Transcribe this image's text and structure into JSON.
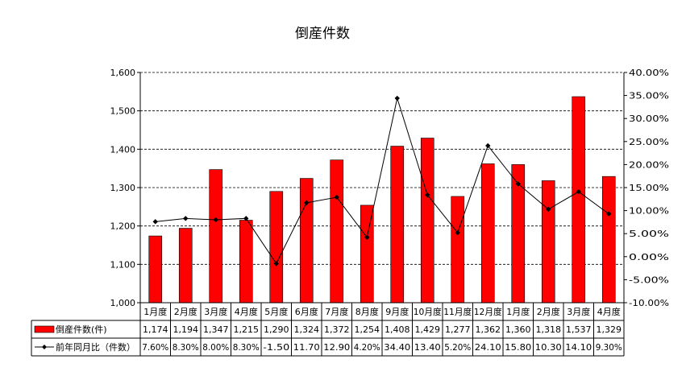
{
  "chart_data": {
    "type": "bar",
    "title": "倒産件数",
    "categories": [
      "1月度",
      "2月度",
      "3月度",
      "4月度",
      "5月度",
      "6月度",
      "7月度",
      "8月度",
      "9月度",
      "10月度",
      "11月度",
      "12月度",
      "1月度",
      "2月度",
      "3月度",
      "4月度"
    ],
    "series": [
      {
        "name": "倒産件数(件)",
        "type": "bar",
        "axis": "left",
        "color": "#ff0000",
        "values": [
          1174,
          1194,
          1347,
          1215,
          1290,
          1324,
          1372,
          1254,
          1408,
          1429,
          1277,
          1362,
          1360,
          1318,
          1537,
          1329
        ],
        "table_labels": [
          "1,174",
          "1,194",
          "1,347",
          "1,215",
          "1,290",
          "1,324",
          "1,372",
          "1,254",
          "1,408",
          "1,429",
          "1,277",
          "1,362",
          "1,360",
          "1,318",
          "1,537",
          "1,329"
        ]
      },
      {
        "name": "前年同月比（件数）",
        "type": "line",
        "axis": "right",
        "color": "#000000",
        "values": [
          7.6,
          8.3,
          8.0,
          8.3,
          -1.5,
          11.7,
          12.9,
          4.2,
          34.4,
          13.4,
          5.2,
          24.1,
          15.8,
          10.3,
          14.1,
          9.3
        ],
        "table_labels": [
          "7.60%",
          "8.30%",
          "8.00%",
          "8.30%",
          "-1.50",
          "11.70",
          "12.90",
          "4.20%",
          "34.40",
          "13.40",
          "5.20%",
          "24.10",
          "15.80",
          "10.30",
          "14.10",
          "9.30%"
        ]
      }
    ],
    "y_left": {
      "ylim": [
        1000,
        1600
      ],
      "ticks": [
        1000,
        1100,
        1200,
        1300,
        1400,
        1500,
        1600
      ],
      "tick_labels": [
        "1,000",
        "1,100",
        "1,200",
        "1,300",
        "1,400",
        "1,500",
        "1,600"
      ]
    },
    "y_right": {
      "ylim": [
        -10,
        40
      ],
      "ticks": [
        -10,
        -5,
        0,
        5,
        10,
        15,
        20,
        25,
        30,
        35,
        40
      ],
      "tick_labels": [
        "-10.00%",
        "-5.00%",
        "0.00%",
        "5.00%",
        "10.00%",
        "15.00%",
        "20.00%",
        "25.00%",
        "30.00%",
        "35.00%",
        "40.00%"
      ]
    },
    "grid": "horizontal-dashed",
    "legend": "data-table-below"
  }
}
